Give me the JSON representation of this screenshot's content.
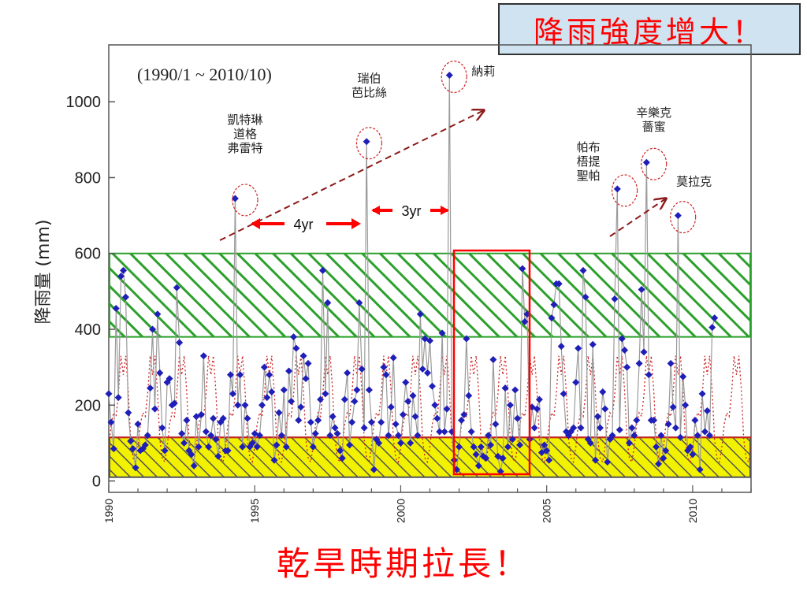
{
  "headline": "降雨強度增大！",
  "bottom_caption": "乾旱時期拉長！",
  "chart_data": {
    "type": "line",
    "period_label": "(1990/1 ~ 2010/10)",
    "ylabel": "降雨量 (mm)",
    "xlabel": "",
    "xlim": [
      1990,
      2012
    ],
    "ylim": [
      -30,
      1150
    ],
    "yticks": [
      0,
      200,
      400,
      600,
      800,
      1000
    ],
    "xticks": [
      1990,
      1995,
      2000,
      2005,
      2010
    ],
    "grid": false,
    "colors": {
      "data": "#1f1fb8",
      "line": "#9a9a9a",
      "mean": "#cc2222",
      "accent": "#ff0000",
      "band_wet": "#2ca02c",
      "band_dry": "#e6e600"
    },
    "bands": [
      {
        "name": "wet",
        "from": 380,
        "to": 600
      },
      {
        "name": "dry",
        "from": 10,
        "to": 115
      }
    ],
    "series": [
      {
        "x": [
          1990.0,
          1990.08,
          1990.17,
          1990.25,
          1990.33,
          1990.42,
          1990.5,
          1990.58,
          1990.67,
          1990.75,
          1990.83,
          1990.92,
          1991.0,
          1991.08,
          1991.17,
          1991.25,
          1991.33,
          1991.42,
          1991.5,
          1991.58,
          1991.67,
          1991.75,
          1991.83,
          1991.92,
          1992.0,
          1992.08,
          1992.17,
          1992.25,
          1992.33,
          1992.42,
          1992.5,
          1992.58,
          1992.67,
          1992.75,
          1992.83,
          1992.92,
          1993.0,
          1993.08,
          1993.17,
          1993.25,
          1993.33,
          1993.42,
          1993.5,
          1993.58,
          1993.67,
          1993.75,
          1993.83,
          1993.92,
          1994.0,
          1994.08,
          1994.17,
          1994.25,
          1994.33,
          1994.42,
          1994.5,
          1994.58,
          1994.67,
          1994.75,
          1994.83,
          1994.92,
          1995.0,
          1995.08,
          1995.17,
          1995.25,
          1995.33,
          1995.42,
          1995.5,
          1995.58,
          1995.67,
          1995.75,
          1995.83,
          1995.92,
          1996.0,
          1996.08,
          1996.17,
          1996.25,
          1996.33,
          1996.42,
          1996.5,
          1996.58,
          1996.67,
          1996.75,
          1996.83,
          1996.92,
          1997.0,
          1997.08,
          1997.17,
          1997.25,
          1997.33,
          1997.42,
          1997.5,
          1997.58,
          1997.67,
          1997.75,
          1997.83,
          1997.92,
          1998.0,
          1998.08,
          1998.17,
          1998.25,
          1998.33,
          1998.42,
          1998.5,
          1998.58,
          1998.67,
          1998.75,
          1998.83,
          1998.92,
          1999.0,
          1999.08,
          1999.17,
          1999.25,
          1999.33,
          1999.42,
          1999.5,
          1999.58,
          1999.67,
          1999.75,
          1999.83,
          1999.92,
          2000.0,
          2000.08,
          2000.17,
          2000.25,
          2000.33,
          2000.42,
          2000.5,
          2000.58,
          2000.67,
          2000.75,
          2000.83,
          2000.92,
          2001.0,
          2001.08,
          2001.17,
          2001.25,
          2001.33,
          2001.42,
          2001.5,
          2001.58,
          2001.67,
          2001.75,
          2001.83,
          2001.92,
          2002.0,
          2002.08,
          2002.17,
          2002.25,
          2002.33,
          2002.42,
          2002.5,
          2002.58,
          2002.67,
          2002.75,
          2002.83,
          2002.92,
          2003.0,
          2003.08,
          2003.17,
          2003.25,
          2003.33,
          2003.42,
          2003.5,
          2003.58,
          2003.67,
          2003.75,
          2003.83,
          2003.92,
          2004.0,
          2004.08,
          2004.17,
          2004.25,
          2004.33,
          2004.42,
          2004.5,
          2004.58,
          2004.67,
          2004.75,
          2004.83,
          2004.92,
          2005.0,
          2005.08,
          2005.17,
          2005.25,
          2005.33,
          2005.42,
          2005.5,
          2005.58,
          2005.67,
          2005.75,
          2005.83,
          2005.92,
          2006.0,
          2006.08,
          2006.17,
          2006.25,
          2006.33,
          2006.42,
          2006.5,
          2006.58,
          2006.67,
          2006.75,
          2006.83,
          2006.92,
          2007.0,
          2007.08,
          2007.17,
          2007.25,
          2007.33,
          2007.42,
          2007.5,
          2007.58,
          2007.67,
          2007.75,
          2007.83,
          2007.92,
          2008.0,
          2008.08,
          2008.17,
          2008.25,
          2008.33,
          2008.42,
          2008.5,
          2008.58,
          2008.67,
          2008.75,
          2008.83,
          2008.92,
          2009.0,
          2009.08,
          2009.17,
          2009.25,
          2009.33,
          2009.42,
          2009.5,
          2009.58,
          2009.67,
          2009.75,
          2009.83,
          2009.92,
          2010.0,
          2010.08,
          2010.17,
          2010.25,
          2010.33,
          2010.42,
          2010.5,
          2010.58,
          2010.67,
          2010.75
        ],
        "y": [
          230,
          155,
          85,
          455,
          220,
          540,
          555,
          485,
          180,
          105,
          85,
          35,
          150,
          80,
          85,
          95,
          120,
          245,
          400,
          190,
          440,
          285,
          140,
          80,
          260,
          270,
          200,
          205,
          510,
          365,
          125,
          100,
          160,
          80,
          70,
          40,
          170,
          90,
          175,
          330,
          130,
          90,
          120,
          165,
          110,
          65,
          155,
          165,
          80,
          80,
          280,
          230,
          745,
          200,
          280,
          90,
          200,
          165,
          90,
          100,
          125,
          90,
          120,
          200,
          300,
          220,
          280,
          235,
          55,
          95,
          180,
          120,
          240,
          90,
          290,
          210,
          380,
          350,
          160,
          195,
          330,
          270,
          310,
          155,
          90,
          125,
          160,
          215,
          555,
          230,
          470,
          120,
          170,
          140,
          125,
          80,
          60,
          215,
          285,
          95,
          155,
          210,
          240,
          470,
          295,
          140,
          895,
          240,
          155,
          30,
          110,
          100,
          155,
          300,
          280,
          120,
          195,
          325,
          150,
          120,
          100,
          175,
          260,
          210,
          100,
          225,
          170,
          120,
          440,
          295,
          375,
          285,
          370,
          250,
          200,
          165,
          130,
          390,
          130,
          190,
          1070,
          130,
          55,
          30,
          90,
          160,
          175,
          375,
          225,
          130,
          90,
          70,
          40,
          90,
          65,
          60,
          120,
          95,
          320,
          150,
          65,
          25,
          60,
          245,
          90,
          200,
          110,
          240,
          165,
          95,
          560,
          420,
          440,
          110,
          195,
          140,
          190,
          215,
          75,
          95,
          80,
          55,
          430,
          465,
          520,
          520,
          355,
          230,
          130,
          120,
          130,
          140,
          260,
          350,
          140,
          555,
          485,
          110,
          100,
          360,
          55,
          170,
          140,
          235,
          190,
          50,
          110,
          120,
          480,
          770,
          135,
          375,
          345,
          300,
          100,
          140,
          120,
          160,
          310,
          505,
          340,
          840,
          280,
          160,
          160,
          90,
          45,
          120,
          60,
          80,
          150,
          310,
          195,
          140,
          700,
          115,
          275,
          200,
          80,
          90,
          70,
          160,
          120,
          30,
          230,
          130,
          185,
          120,
          405,
          430
        ]
      }
    ],
    "peaks": [
      {
        "x": 1994.67,
        "y": 745,
        "label_lines": [
          "凱特琳",
          "道格",
          "弗雷特"
        ]
      },
      {
        "x": 1998.92,
        "y": 895,
        "label_lines": [
          "瑞伯",
          "芭比絲"
        ]
      },
      {
        "x": 2001.83,
        "y": 1070,
        "label_lines": [
          "納莉"
        ]
      },
      {
        "x": 2007.67,
        "y": 770,
        "label_lines": [
          "帕布",
          "梧提",
          "聖帕"
        ]
      },
      {
        "x": 2008.67,
        "y": 840,
        "label_lines": [
          "辛樂克",
          "薔蜜"
        ]
      },
      {
        "x": 2009.67,
        "y": 700,
        "label_lines": [
          "莫拉克"
        ]
      }
    ],
    "annotations": {
      "gap_1": "4yr",
      "gap_2": "3yr"
    }
  }
}
